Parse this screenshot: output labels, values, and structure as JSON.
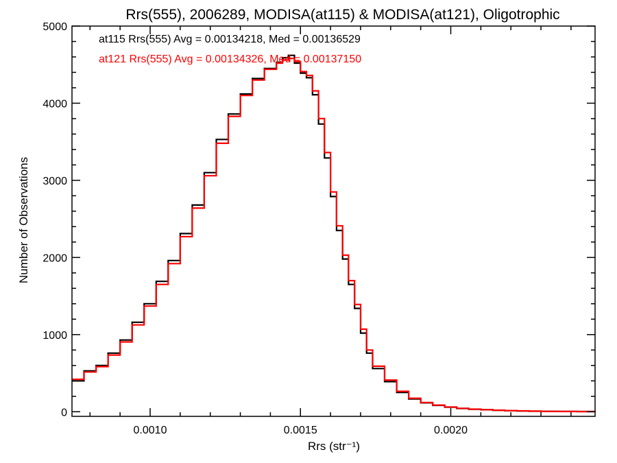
{
  "chart_data": {
    "type": "line",
    "style": "step-histogram",
    "title": "Rrs(555), 2006289, MODISA(at115) & MODISA(at121), Oligotrophic",
    "xlabel": "Rrs (str⁻¹)",
    "ylabel": "Number of Observations",
    "xlim": [
      0.00074,
      0.00248
    ],
    "ylim": [
      -60,
      5000
    ],
    "xticks": [
      {
        "value": 0.001,
        "label": "0.0010"
      },
      {
        "value": 0.0015,
        "label": "0.0015"
      },
      {
        "value": 0.002,
        "label": "0.0020"
      }
    ],
    "yticks": [
      {
        "value": 0,
        "label": "0"
      },
      {
        "value": 1000,
        "label": "1000"
      },
      {
        "value": 2000,
        "label": "2000"
      },
      {
        "value": 3000,
        "label": "3000"
      },
      {
        "value": 4000,
        "label": "4000"
      },
      {
        "value": 5000,
        "label": "5000"
      }
    ],
    "grid": false,
    "legend_position": "top-left",
    "series": [
      {
        "name": "at115",
        "color": "#000000",
        "legend": "at115 Rrs(555) Avg = 0.00134218, Med = 0.00136529",
        "x": [
          0.00074,
          0.00078,
          0.00082,
          0.00086,
          0.0009,
          0.00094,
          0.00098,
          0.00102,
          0.00106,
          0.0011,
          0.00114,
          0.00118,
          0.00122,
          0.00126,
          0.0013,
          0.00134,
          0.00138,
          0.00142,
          0.00144,
          0.00146,
          0.00148,
          0.0015,
          0.00152,
          0.00154,
          0.00156,
          0.00158,
          0.0016,
          0.00162,
          0.00164,
          0.00166,
          0.00168,
          0.0017,
          0.00172,
          0.00174,
          0.00178,
          0.00182,
          0.00186,
          0.0019,
          0.00194,
          0.00198,
          0.00202,
          0.00206,
          0.0021,
          0.00214,
          0.00218,
          0.00222,
          0.00226,
          0.0023,
          0.00236,
          0.00242,
          0.00248
        ],
        "y": [
          400,
          530,
          600,
          760,
          930,
          1160,
          1400,
          1690,
          1960,
          2310,
          2680,
          3100,
          3530,
          3860,
          4120,
          4320,
          4450,
          4530,
          4590,
          4620,
          4520,
          4390,
          4330,
          4110,
          3730,
          3290,
          2790,
          2350,
          1980,
          1650,
          1340,
          1020,
          760,
          560,
          390,
          250,
          165,
          115,
          82,
          58,
          42,
          32,
          25,
          19,
          14,
          10,
          7,
          5,
          3,
          2,
          1
        ]
      },
      {
        "name": "at121",
        "color": "#ff0000",
        "legend": "at121 Rrs(555) Avg = 0.00134326, Med = 0.00137150",
        "x": [
          0.00074,
          0.00078,
          0.00082,
          0.00086,
          0.0009,
          0.00094,
          0.00098,
          0.00102,
          0.00106,
          0.0011,
          0.00114,
          0.00118,
          0.00122,
          0.00126,
          0.0013,
          0.00134,
          0.00138,
          0.00142,
          0.00144,
          0.00146,
          0.00148,
          0.0015,
          0.00152,
          0.00154,
          0.00156,
          0.00158,
          0.0016,
          0.00162,
          0.00164,
          0.00166,
          0.00168,
          0.0017,
          0.00172,
          0.00174,
          0.00178,
          0.00182,
          0.00186,
          0.0019,
          0.00194,
          0.00198,
          0.00202,
          0.00206,
          0.0021,
          0.00214,
          0.00218,
          0.00222,
          0.00226,
          0.0023,
          0.00236,
          0.00242,
          0.00248
        ],
        "y": [
          420,
          515,
          585,
          735,
          905,
          1125,
          1370,
          1650,
          1920,
          2270,
          2640,
          3060,
          3480,
          3830,
          4100,
          4300,
          4440,
          4520,
          4560,
          4580,
          4540,
          4410,
          4360,
          4160,
          3800,
          3360,
          2850,
          2410,
          2030,
          1700,
          1390,
          1070,
          800,
          590,
          410,
          265,
          175,
          120,
          86,
          61,
          44,
          33,
          26,
          20,
          15,
          11,
          8,
          5,
          3,
          2,
          1
        ]
      }
    ]
  }
}
